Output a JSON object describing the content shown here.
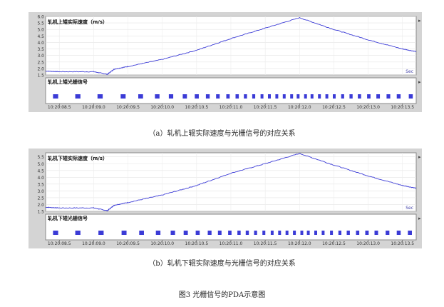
{
  "panels": [
    {
      "id": "a",
      "speed_title": "轧机上辊实际速度（m/s）",
      "signal_title": "轧机上辊光栅信号",
      "sec_label": "Sec",
      "y_ticks": [
        "6.0",
        "5.5",
        "5.0",
        "4.5",
        "4.0",
        "3.5",
        "3.0",
        "2.5",
        "2.0",
        "1.5"
      ],
      "time_ticks": [
        "10:20:08.5",
        "10:20:09.0",
        "10:20:09.5",
        "10:20:10.0",
        "10:20:10.5",
        "10:20:11.0",
        "10:20:11.5",
        "10:20:12.0",
        "10:20:12.5",
        "10:20:13.0",
        "10:20:13.5"
      ],
      "caption": "（a）轧机上辊实际速度与光栅信号的对应关系"
    },
    {
      "id": "b",
      "speed_title": "轧机下辊实际速度（m/s）",
      "signal_title": "轧机下辊光栅信号",
      "sec_label": "Sec",
      "y_ticks": [
        "5.5",
        "5.0",
        "4.5",
        "4.0",
        "3.5",
        "3.0",
        "2.5",
        "2.0",
        "1.5"
      ],
      "time_ticks": [
        "10:20:08.5",
        "10:20:09.0",
        "10:20:09.5",
        "10:20:10.0",
        "10:20:10.5",
        "10:20:11.0",
        "10:20:11.5",
        "10:20:12.0",
        "10:20:12.5",
        "10:20:13.0",
        "10:20:13.5"
      ],
      "caption": "（b）轧机下辊实际速度与光栅信号的对应关系"
    }
  ],
  "figure_caption": "图3  光栅信号的PDA示意图",
  "chart_data": [
    {
      "type": "line",
      "title": "轧机上辊实际速度（m/s）",
      "xlabel": "Sec",
      "ylim": [
        1.5,
        6.0
      ],
      "x": [
        "10:20:08.3",
        "10:20:08.5",
        "10:20:09.0",
        "10:20:09.2",
        "10:20:09.3",
        "10:20:09.5",
        "10:20:10.0",
        "10:20:10.5",
        "10:20:11.0",
        "10:20:11.5",
        "10:20:12.0",
        "10:20:12.5",
        "10:20:13.0",
        "10:20:13.5",
        "10:20:13.7"
      ],
      "values": [
        1.8,
        1.75,
        1.75,
        1.55,
        1.95,
        2.15,
        2.7,
        3.4,
        4.3,
        5.1,
        5.9,
        5.0,
        4.2,
        3.5,
        3.3
      ],
      "signal_title": "轧机上辊光栅信号",
      "signal_pulse_count": 34
    },
    {
      "type": "line",
      "title": "轧机下辊实际速度（m/s）",
      "xlabel": "Sec",
      "ylim": [
        1.5,
        5.8
      ],
      "x": [
        "10:20:08.3",
        "10:20:08.5",
        "10:20:09.0",
        "10:20:09.2",
        "10:20:09.3",
        "10:20:09.5",
        "10:20:10.0",
        "10:20:10.5",
        "10:20:11.0",
        "10:20:11.5",
        "10:20:12.0",
        "10:20:12.5",
        "10:20:13.0",
        "10:20:13.5",
        "10:20:13.7"
      ],
      "values": [
        1.8,
        1.75,
        1.75,
        1.55,
        1.95,
        2.15,
        2.7,
        3.4,
        4.3,
        5.0,
        5.75,
        4.9,
        4.1,
        3.4,
        3.2
      ],
      "signal_title": "轧机下辊光栅信号",
      "signal_pulse_count": 33
    }
  ]
}
